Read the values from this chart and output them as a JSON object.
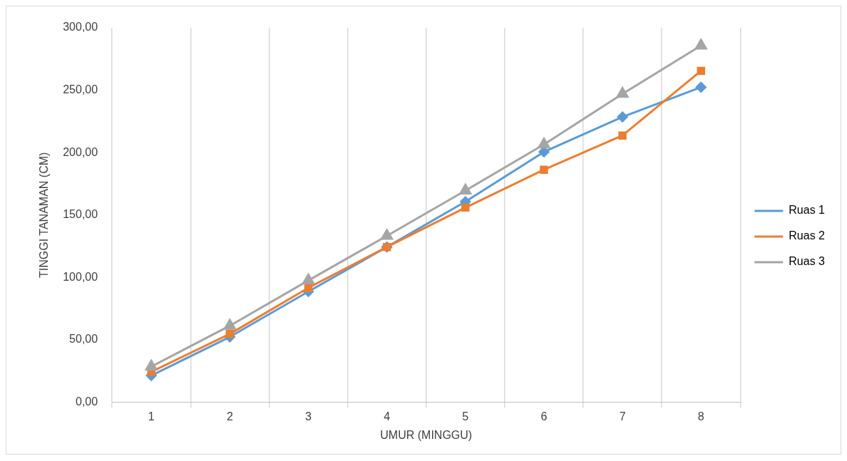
{
  "chart_data": {
    "type": "line",
    "xlabel": "UMUR (MINGGU)",
    "ylabel": "TINGGI TANAMAN (CM)",
    "categories": [
      "1",
      "2",
      "3",
      "4",
      "5",
      "6",
      "7",
      "8"
    ],
    "series": [
      {
        "name": "Ruas 1",
        "color": "#5b9bd5",
        "marker": "diamond",
        "values": [
          21.4,
          52.4,
          88.7,
          124.4,
          160.7,
          200.6,
          228.6,
          252.4
        ]
      },
      {
        "name": "Ruas 2",
        "color": "#ed7d31",
        "marker": "square",
        "values": [
          24.4,
          54.8,
          91.7,
          124.4,
          156,
          186.3,
          213.7,
          265.5
        ]
      },
      {
        "name": "Ruas 3",
        "color": "#a5a5a5",
        "marker": "triangle",
        "values": [
          28.6,
          61.3,
          97.6,
          133.3,
          169.6,
          206.5,
          247,
          285.7
        ]
      }
    ],
    "ylim": [
      0,
      300
    ],
    "yticks": [
      {
        "value": 0,
        "label": "0,00"
      },
      {
        "value": 50,
        "label": "50,00"
      },
      {
        "value": 100,
        "label": "100,00"
      },
      {
        "value": 150,
        "label": "150,00"
      },
      {
        "value": 200,
        "label": "200,00"
      },
      {
        "value": 250,
        "label": "250,00"
      },
      {
        "value": 300,
        "label": "300,00"
      }
    ],
    "grid": "x",
    "legend": "right",
    "line_style": "solid"
  }
}
